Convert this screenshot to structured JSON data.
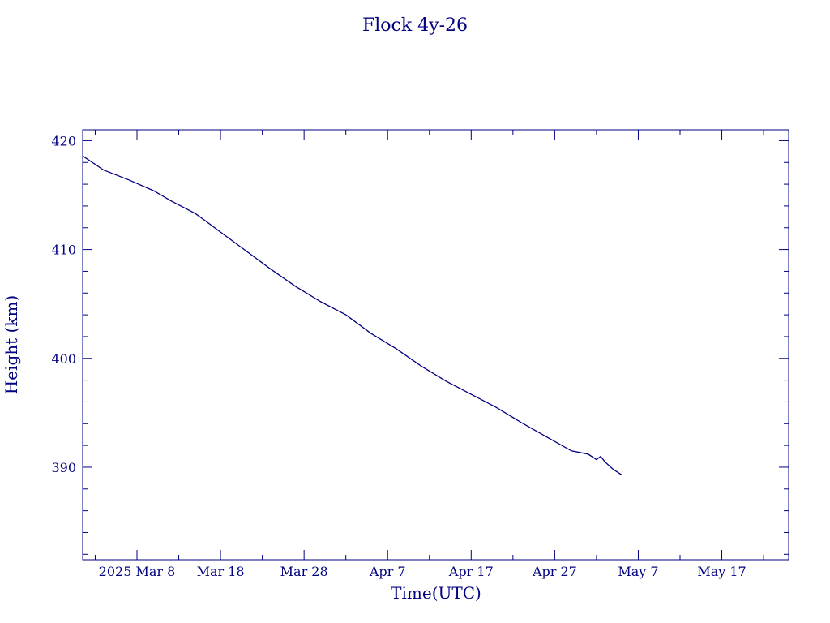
{
  "chart_data": {
    "type": "line",
    "title": "Flock 4y-26",
    "xlabel": "Time(UTC)",
    "ylabel": "Height (km)",
    "x_type": "date",
    "xlim": [
      "2025-03-01T12:00",
      "2025-05-25"
    ],
    "ylim": [
      381.5,
      421
    ],
    "x_ticks": [
      {
        "date": "2025-03-08",
        "label": "2025 Mar  8"
      },
      {
        "date": "2025-03-18",
        "label": "Mar 18"
      },
      {
        "date": "2025-03-28",
        "label": "Mar 28"
      },
      {
        "date": "2025-04-07",
        "label": "Apr  7"
      },
      {
        "date": "2025-04-17",
        "label": "Apr 17"
      },
      {
        "date": "2025-04-27",
        "label": "Apr 27"
      },
      {
        "date": "2025-05-07",
        "label": "May  7"
      },
      {
        "date": "2025-05-17",
        "label": "May 17"
      }
    ],
    "y_ticks": [
      390,
      400,
      410,
      420
    ],
    "color": "#000080",
    "grid": false,
    "series": [
      {
        "x": [
          "2025-03-01T12:00",
          "2025-03-04",
          "2025-03-07",
          "2025-03-10",
          "2025-03-12",
          "2025-03-15",
          "2025-03-18",
          "2025-03-21",
          "2025-03-24",
          "2025-03-27",
          "2025-03-30",
          "2025-04-02",
          "2025-04-05",
          "2025-04-08",
          "2025-04-11",
          "2025-04-14",
          "2025-04-17",
          "2025-04-20",
          "2025-04-23",
          "2025-04-26",
          "2025-04-29",
          "2025-05-01",
          "2025-05-02",
          "2025-05-02T12:00",
          "2025-05-03",
          "2025-05-04",
          "2025-05-05"
        ],
        "y": [
          418.6,
          417.3,
          416.4,
          415.4,
          414.5,
          413.3,
          411.6,
          409.9,
          408.2,
          406.6,
          405.2,
          404.0,
          402.3,
          400.9,
          399.3,
          397.9,
          396.7,
          395.5,
          394.1,
          392.8,
          391.5,
          391.2,
          390.7,
          391.0,
          390.5,
          389.8,
          389.3
        ]
      }
    ]
  }
}
